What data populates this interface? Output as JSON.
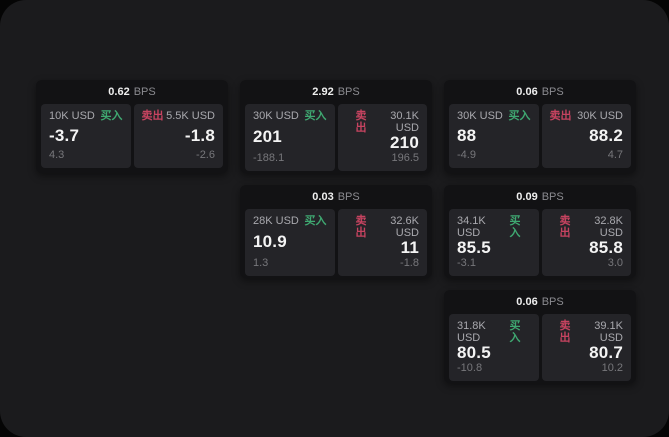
{
  "labels": {
    "bps_unit": "BPS",
    "buy": "买入",
    "sell": "卖出"
  },
  "colors": {
    "page_bg": "#1b1b1d",
    "card_bg": "#121214",
    "panel_bg": "#242428",
    "buy_green": "#3fa871",
    "sell_red": "#c64360",
    "price_text": "#f4f4f4",
    "muted_text": "#77777b"
  },
  "cards": [
    {
      "bps": "0.62",
      "row": 1,
      "col": 1,
      "buy": {
        "size": "10K USD",
        "price": "-3.7",
        "delta": "4.3"
      },
      "sell": {
        "size": "5.5K USD",
        "price": "-1.8",
        "delta": "-2.6"
      }
    },
    {
      "bps": "2.92",
      "row": 1,
      "col": 2,
      "buy": {
        "size": "30K USD",
        "price": "201",
        "delta": "-188.1"
      },
      "sell": {
        "size": "30.1K USD",
        "price": "210",
        "delta": "196.5"
      }
    },
    {
      "bps": "0.06",
      "row": 1,
      "col": 3,
      "buy": {
        "size": "30K USD",
        "price": "88",
        "delta": "-4.9"
      },
      "sell": {
        "size": "30K USD",
        "price": "88.2",
        "delta": "4.7"
      }
    },
    {
      "bps": "0.03",
      "row": 2,
      "col": 2,
      "buy": {
        "size": "28K USD",
        "price": "10.9",
        "delta": "1.3"
      },
      "sell": {
        "size": "32.6K USD",
        "price": "11",
        "delta": "-1.8"
      }
    },
    {
      "bps": "0.09",
      "row": 2,
      "col": 3,
      "buy": {
        "size": "34.1K USD",
        "price": "85.5",
        "delta": "-3.1"
      },
      "sell": {
        "size": "32.8K USD",
        "price": "85.8",
        "delta": "3.0"
      }
    },
    {
      "bps": "0.06",
      "row": 3,
      "col": 3,
      "buy": {
        "size": "31.8K USD",
        "price": "80.5",
        "delta": "-10.8"
      },
      "sell": {
        "size": "39.1K USD",
        "price": "80.7",
        "delta": "10.2"
      }
    }
  ]
}
